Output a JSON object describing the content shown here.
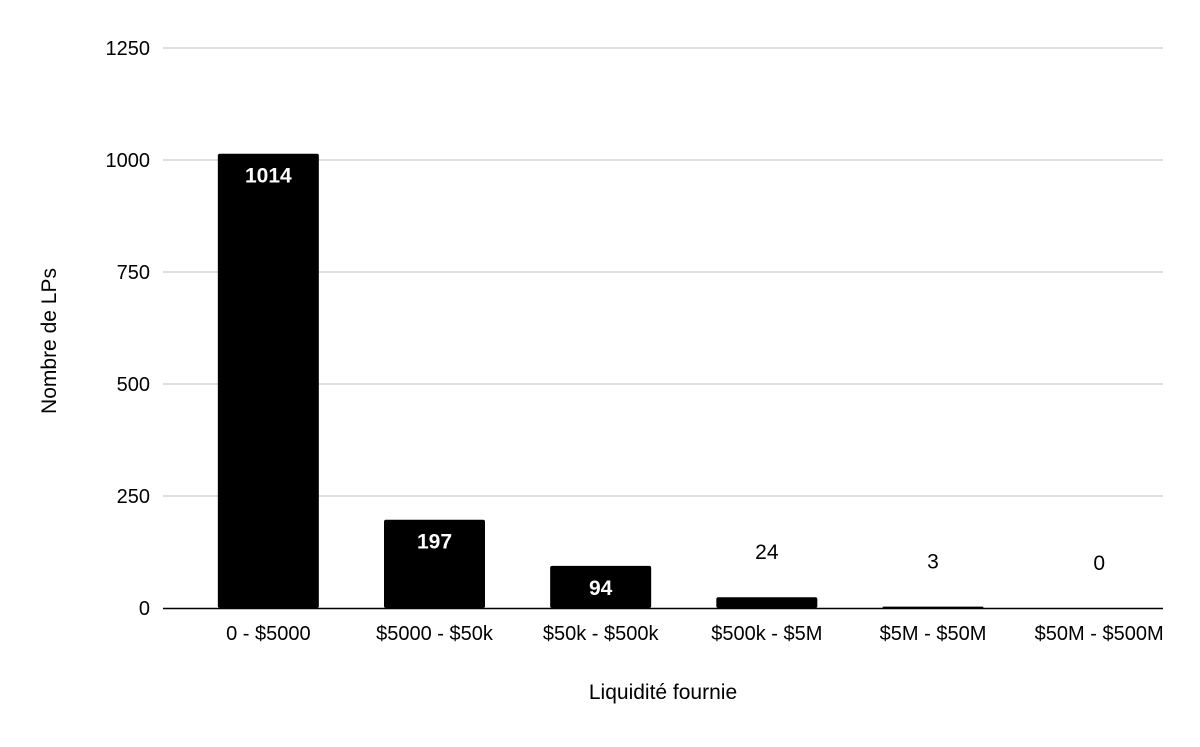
{
  "chart_data": {
    "type": "bar",
    "title": "",
    "xlabel": "Liquidité fournie",
    "ylabel": "Nombre de LPs",
    "categories": [
      "0 - $5000",
      "$5000 - $50k",
      "$50k - $500k",
      "$500k - $5M",
      "$5M - $50M",
      "$50M - $500M"
    ],
    "values": [
      1014,
      197,
      94,
      24,
      3,
      0
    ],
    "data_labels": [
      "1014",
      "197",
      "94",
      "24",
      "3",
      "0"
    ],
    "ylim": [
      0,
      1250
    ],
    "yticks": [
      0,
      250,
      500,
      750,
      1000,
      1250
    ],
    "ytick_labels": [
      "0",
      "250",
      "500",
      "750",
      "1000",
      "1250"
    ],
    "grid": true,
    "legend": "none",
    "colors": {
      "bar": "#000000",
      "gridline": "#cccccc",
      "axis": "#000000",
      "label_inside": "#ffffff",
      "label_outside": "#000000"
    }
  }
}
